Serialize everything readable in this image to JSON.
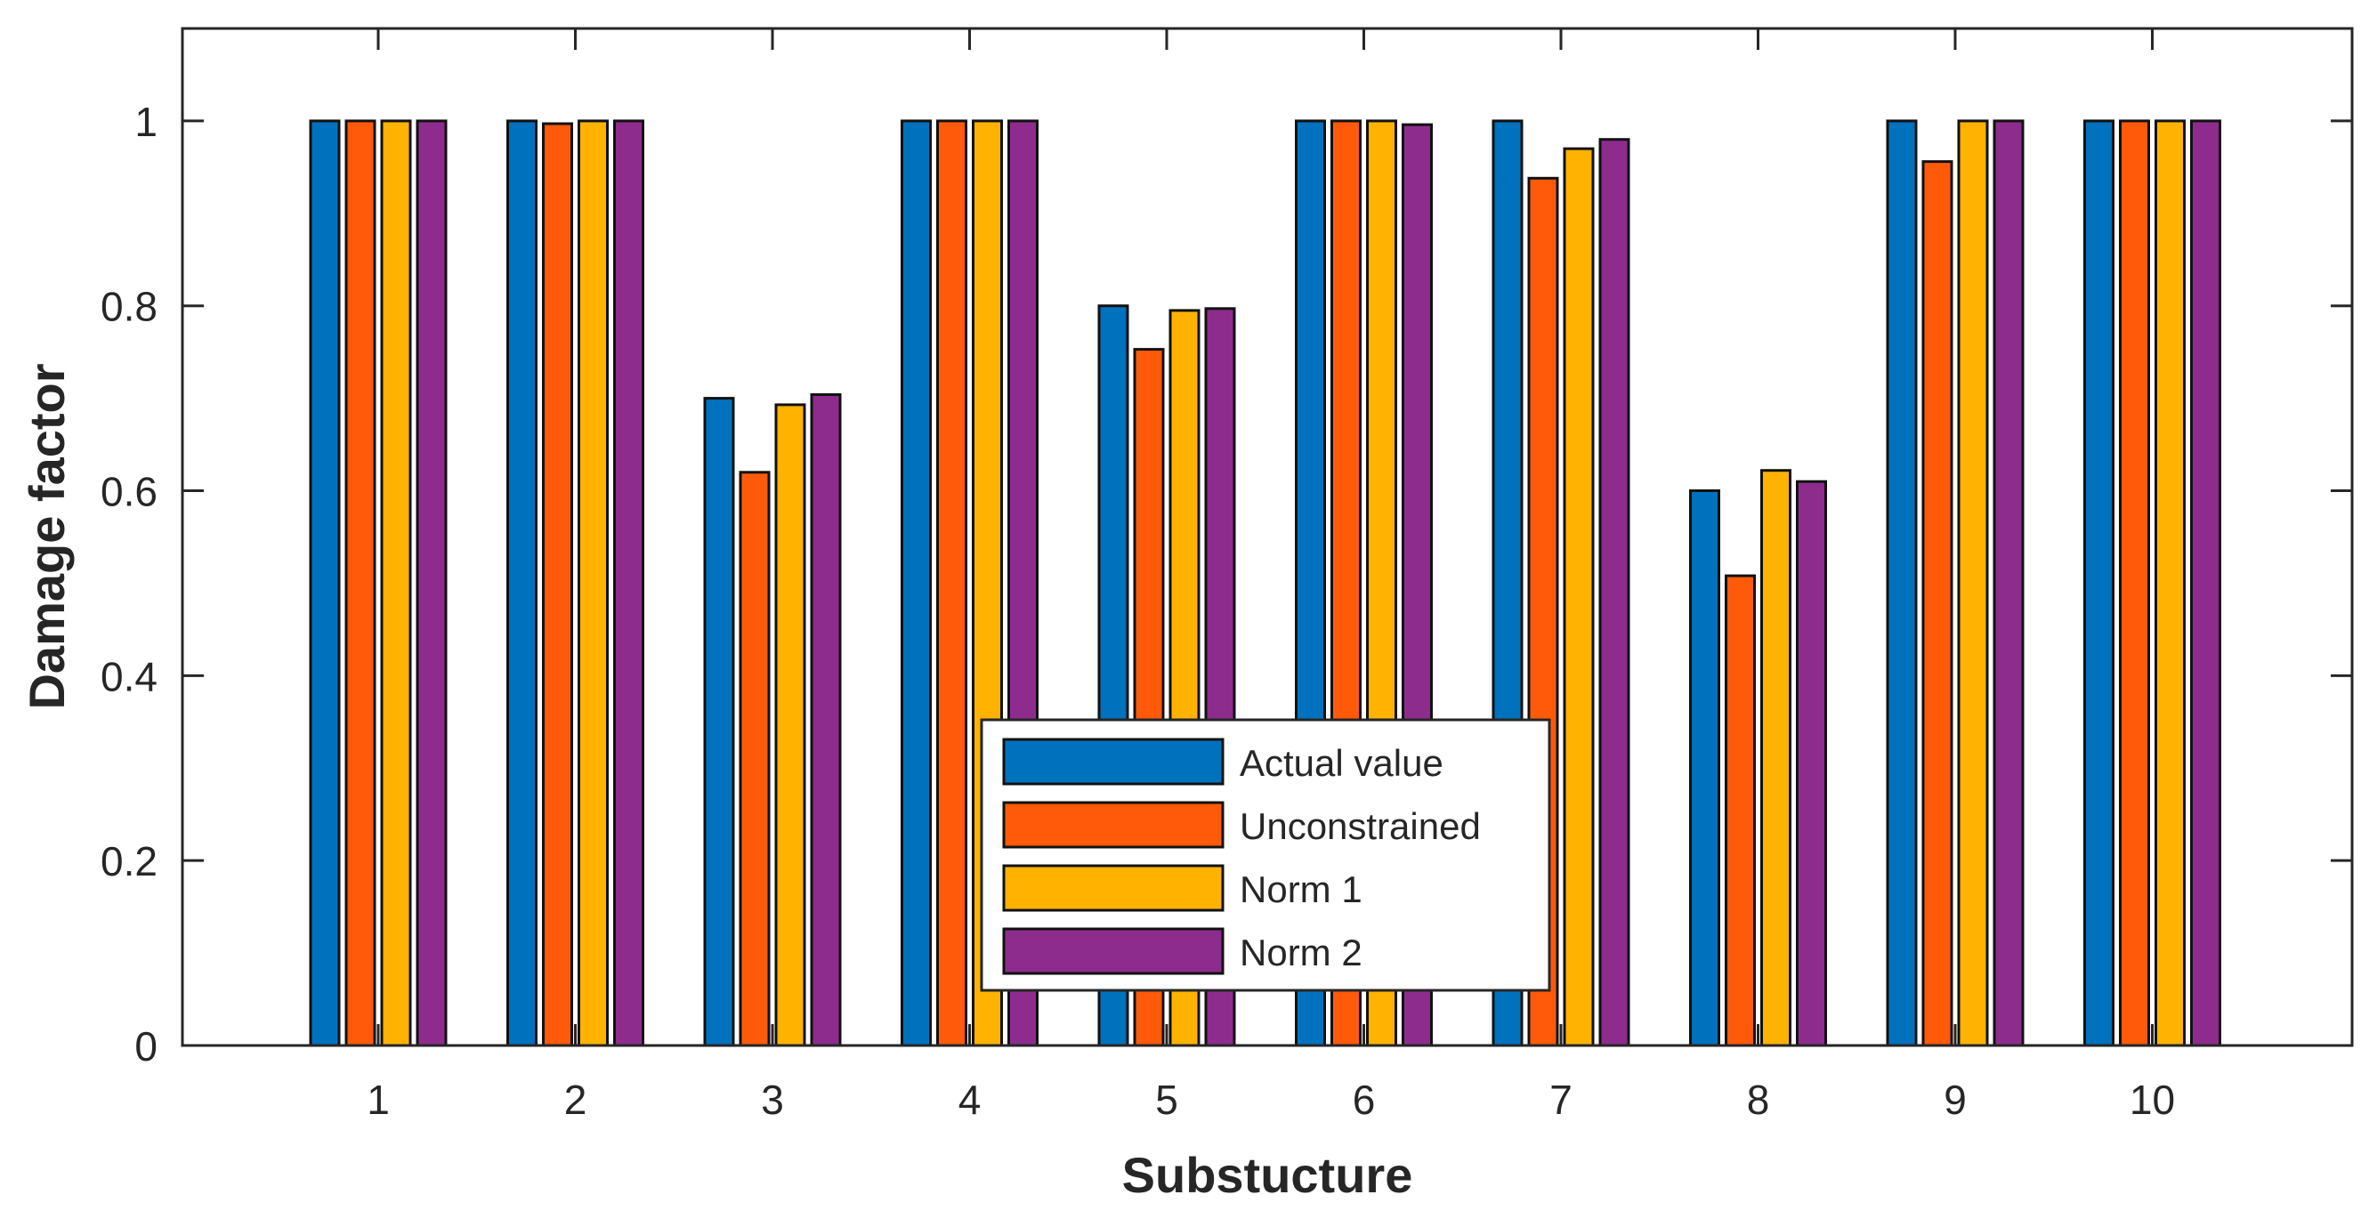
{
  "chart_data": {
    "type": "bar",
    "title": "",
    "xlabel": "Substucture",
    "ylabel": "Damage factor",
    "categories": [
      "1",
      "2",
      "3",
      "4",
      "5",
      "6",
      "7",
      "8",
      "9",
      "10"
    ],
    "series": [
      {
        "name": "Actual value",
        "color": "#0072BD",
        "values": [
          1.0,
          1.0,
          0.7,
          1.0,
          0.8,
          1.0,
          1.0,
          0.6,
          1.0,
          1.0
        ]
      },
      {
        "name": "Unconstrained",
        "color": "#FF5A0A",
        "values": [
          1.0,
          0.997,
          0.62,
          1.0,
          0.753,
          1.0,
          0.938,
          0.508,
          0.956,
          1.0
        ]
      },
      {
        "name": "Norm 1",
        "color": "#FFB300",
        "values": [
          1.0,
          1.0,
          0.693,
          1.0,
          0.795,
          1.0,
          0.97,
          0.622,
          1.0,
          1.0
        ]
      },
      {
        "name": "Norm 2",
        "color": "#8E2C8E",
        "values": [
          1.0,
          1.0,
          0.704,
          1.0,
          0.797,
          0.996,
          0.98,
          0.61,
          1.0,
          1.0
        ]
      }
    ],
    "ylim": [
      0,
      1.1
    ],
    "yticks": [
      "0",
      "0.2",
      "0.4",
      "0.6",
      "0.8",
      "1"
    ],
    "grid": false,
    "legend_position": "bottom-center"
  }
}
